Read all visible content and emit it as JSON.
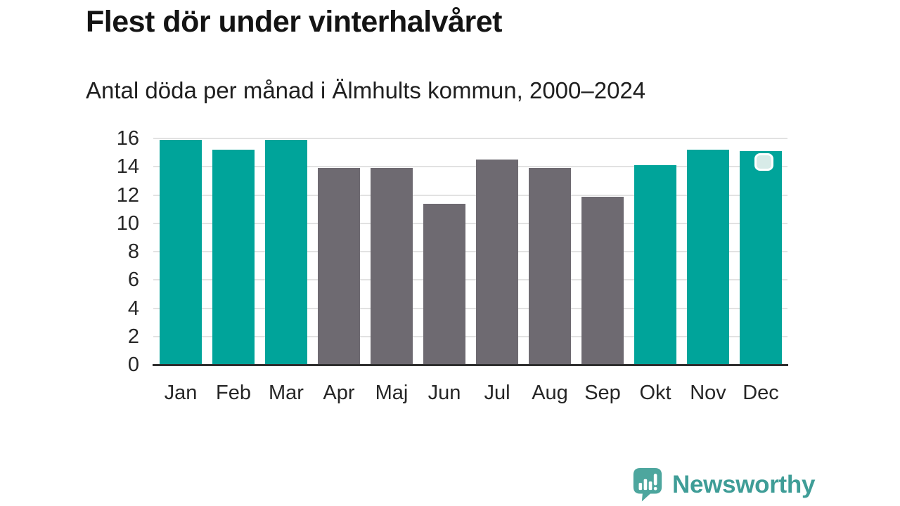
{
  "chart_data": {
    "type": "bar",
    "title": "Flest dör under vinterhalvåret",
    "subtitle": "Antal döda per månad i Älmhults kommun, 2000–2024",
    "categories": [
      "Jan",
      "Feb",
      "Mar",
      "Apr",
      "Maj",
      "Jun",
      "Jul",
      "Aug",
      "Sep",
      "Okt",
      "Nov",
      "Dec"
    ],
    "values": [
      15.9,
      15.2,
      15.9,
      13.9,
      13.9,
      11.4,
      14.5,
      13.9,
      11.9,
      14.1,
      15.2,
      15.1
    ],
    "highlighted_months": [
      "Jan",
      "Feb",
      "Mar",
      "Okt",
      "Nov",
      "Dec"
    ],
    "ylabel": "",
    "xlabel": "",
    "ylim": [
      0,
      16
    ],
    "yticks": [
      0,
      2,
      4,
      6,
      8,
      10,
      12,
      14,
      16
    ],
    "grid": true,
    "legend_position": "none",
    "colors": {
      "highlight_bar": "#00a49a",
      "default_bar": "#6e6a71",
      "gridline": "#e2e2e2",
      "axis_line": "#2f2f2f"
    },
    "latest_marker": {
      "month": "Dec",
      "fill": "#d8ebe8",
      "border": "#ffffff"
    }
  },
  "footer": {
    "brand_name": "Newsworthy",
    "brand_color": "#3f9d97",
    "logo_icon_color": "#4da69e",
    "logo_icon": "newsworthy-bubble-chart-icon"
  }
}
